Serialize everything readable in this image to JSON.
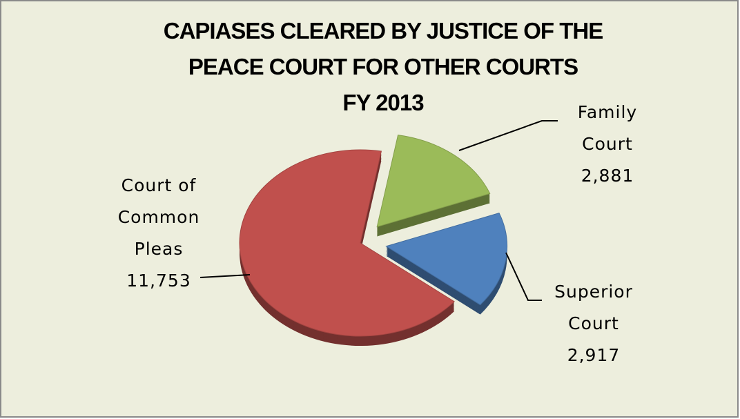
{
  "chart_data": {
    "type": "pie",
    "title": [
      "CAPIASES CLEARED BY JUSTICE OF THE",
      "PEACE COURT FOR OTHER COURTS",
      "FY 2013"
    ],
    "categories": [
      "Family Court",
      "Superior Court",
      "Court of Common Pleas"
    ],
    "values": [
      2881,
      2917,
      11753
    ],
    "value_labels": [
      "2,881",
      "2,917",
      "11,753"
    ],
    "colors": [
      "#9bbb59",
      "#4f81bd",
      "#c0504d"
    ]
  }
}
